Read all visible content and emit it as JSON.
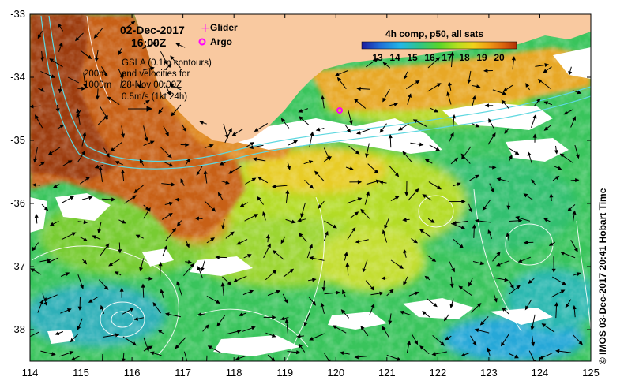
{
  "header": {
    "date": "02-Dec-2017",
    "time": "16:00Z"
  },
  "legend": {
    "glider_label": "Glider",
    "argo_label": "Argo",
    "glider_color": "#ff00ff",
    "argo_color": "#ff00ff"
  },
  "contours": {
    "depth_200": "200m",
    "depth_1000": "1000m"
  },
  "gsla_note": {
    "line1": "GSLA (0.1m contours)",
    "line2": "and velocities for",
    "line3": "28-Nov 00:00Z",
    "line4": "0.5m/s (1kt 24h)"
  },
  "colorbar": {
    "title": "4h comp, p50, all sats",
    "ticks": [
      "13",
      "14",
      "15",
      "16",
      "17",
      "18",
      "19",
      "20"
    ],
    "colors": [
      "#1a1a9e",
      "#1f6fd8",
      "#22b7e8",
      "#2ec48a",
      "#58d62a",
      "#b6e01e",
      "#f0d21a",
      "#f09c14",
      "#d8600c",
      "#b03008"
    ]
  },
  "axes": {
    "x_ticks": [
      "114",
      "115",
      "116",
      "117",
      "118",
      "119",
      "120",
      "121",
      "122",
      "123",
      "124",
      "125"
    ],
    "y_ticks": [
      "-33",
      "-34",
      "-35",
      "-36",
      "-37",
      "-38"
    ]
  },
  "credit": "© IMOS 03-Dec-2017 20:41 Hobart Time",
  "colors": {
    "land": "#f9c9a0",
    "velocity_arrow": "#000000",
    "sla_contour": "#ffffff",
    "isobath": "#5fd8e0"
  }
}
